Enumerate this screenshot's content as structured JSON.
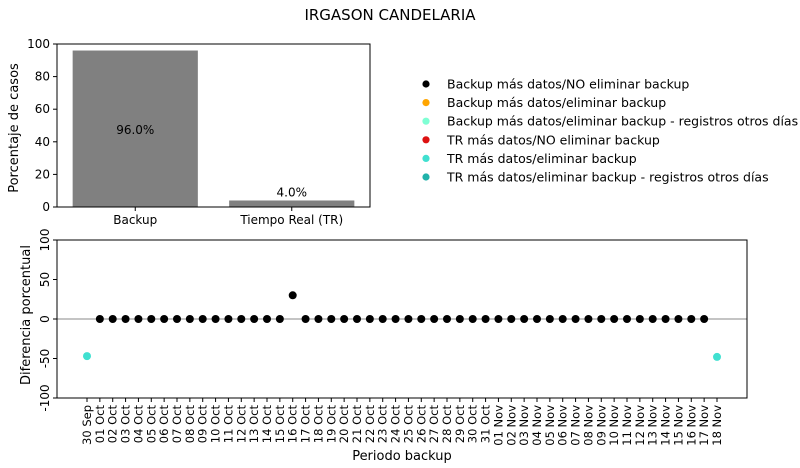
{
  "title": "IRGASON CANDELARIA",
  "legend": [
    {
      "label": "Backup más datos/NO eliminar backup",
      "color": "#000000"
    },
    {
      "label": "Backup más datos/eliminar backup",
      "color": "#ffa500"
    },
    {
      "label": "Backup más datos/eliminar backup - registros otros días",
      "color": "#7fffd4"
    },
    {
      "label": "TR más datos/NO eliminar backup",
      "color": "#dd1111"
    },
    {
      "label": "TR más datos/eliminar backup",
      "color": "#40e0d0"
    },
    {
      "label": "TR más datos/eliminar backup - registros otros días",
      "color": "#20b2aa"
    }
  ],
  "chart_data": [
    {
      "type": "bar",
      "title": "",
      "ylabel": "Porcentaje de casos",
      "xlabel": "",
      "categories": [
        "Backup",
        "Tiempo Real (TR)"
      ],
      "values": [
        96.0,
        4.0
      ],
      "value_labels": [
        "96.0%",
        "4.0%"
      ],
      "ylim": [
        0,
        100
      ],
      "yticks": [
        0,
        20,
        40,
        60,
        80,
        100
      ],
      "bar_color": "#808080"
    },
    {
      "type": "scatter",
      "xlabel": "Periodo backup",
      "ylabel": "Diferencia porcentual",
      "ylim": [
        -100,
        100
      ],
      "yticks": [
        -100,
        -50,
        0,
        50,
        100
      ],
      "reference_line": 0,
      "categories": [
        "30 Sep",
        "01 Oct",
        "02 Oct",
        "03 Oct",
        "04 Oct",
        "05 Oct",
        "06 Oct",
        "07 Oct",
        "08 Oct",
        "09 Oct",
        "10 Oct",
        "11 Oct",
        "12 Oct",
        "13 Oct",
        "14 Oct",
        "15 Oct",
        "16 Oct",
        "17 Oct",
        "18 Oct",
        "19 Oct",
        "20 Oct",
        "21 Oct",
        "22 Oct",
        "23 Oct",
        "24 Oct",
        "25 Oct",
        "26 Oct",
        "27 Oct",
        "28 Oct",
        "29 Oct",
        "30 Oct",
        "31 Oct",
        "01 Nov",
        "02 Nov",
        "03 Nov",
        "04 Nov",
        "05 Nov",
        "06 Nov",
        "07 Nov",
        "08 Nov",
        "09 Nov",
        "10 Nov",
        "11 Nov",
        "12 Nov",
        "13 Nov",
        "14 Nov",
        "15 Nov",
        "16 Nov",
        "17 Nov",
        "18 Nov"
      ],
      "series": [
        {
          "name": "Backup más datos/NO eliminar backup",
          "color": "#000000",
          "points": [
            {
              "x": "01 Oct",
              "y": 0
            },
            {
              "x": "02 Oct",
              "y": 0
            },
            {
              "x": "03 Oct",
              "y": 0
            },
            {
              "x": "04 Oct",
              "y": 0
            },
            {
              "x": "05 Oct",
              "y": 0
            },
            {
              "x": "06 Oct",
              "y": 0
            },
            {
              "x": "07 Oct",
              "y": 0
            },
            {
              "x": "08 Oct",
              "y": 0
            },
            {
              "x": "09 Oct",
              "y": 0
            },
            {
              "x": "10 Oct",
              "y": 0
            },
            {
              "x": "11 Oct",
              "y": 0
            },
            {
              "x": "12 Oct",
              "y": 0
            },
            {
              "x": "13 Oct",
              "y": 0
            },
            {
              "x": "14 Oct",
              "y": 0
            },
            {
              "x": "15 Oct",
              "y": 0
            },
            {
              "x": "16 Oct",
              "y": 30
            },
            {
              "x": "17 Oct",
              "y": 0
            },
            {
              "x": "18 Oct",
              "y": 0
            },
            {
              "x": "19 Oct",
              "y": 0
            },
            {
              "x": "20 Oct",
              "y": 0
            },
            {
              "x": "21 Oct",
              "y": 0
            },
            {
              "x": "22 Oct",
              "y": 0
            },
            {
              "x": "23 Oct",
              "y": 0
            },
            {
              "x": "24 Oct",
              "y": 0
            },
            {
              "x": "25 Oct",
              "y": 0
            },
            {
              "x": "26 Oct",
              "y": 0
            },
            {
              "x": "27 Oct",
              "y": 0
            },
            {
              "x": "28 Oct",
              "y": 0
            },
            {
              "x": "29 Oct",
              "y": 0
            },
            {
              "x": "30 Oct",
              "y": 0
            },
            {
              "x": "31 Oct",
              "y": 0
            },
            {
              "x": "01 Nov",
              "y": 0
            },
            {
              "x": "02 Nov",
              "y": 0
            },
            {
              "x": "03 Nov",
              "y": 0
            },
            {
              "x": "04 Nov",
              "y": 0
            },
            {
              "x": "05 Nov",
              "y": 0
            },
            {
              "x": "06 Nov",
              "y": 0
            },
            {
              "x": "07 Nov",
              "y": 0
            },
            {
              "x": "08 Nov",
              "y": 0
            },
            {
              "x": "09 Nov",
              "y": 0
            },
            {
              "x": "10 Nov",
              "y": 0
            },
            {
              "x": "11 Nov",
              "y": 0
            },
            {
              "x": "12 Nov",
              "y": 0
            },
            {
              "x": "13 Nov",
              "y": 0
            },
            {
              "x": "14 Nov",
              "y": 0
            },
            {
              "x": "15 Nov",
              "y": 0
            },
            {
              "x": "16 Nov",
              "y": 0
            },
            {
              "x": "17 Nov",
              "y": 0
            }
          ]
        },
        {
          "name": "TR más datos/eliminar backup",
          "color": "#40e0d0",
          "points": [
            {
              "x": "30 Sep",
              "y": -47
            },
            {
              "x": "18 Nov",
              "y": -48
            }
          ]
        }
      ]
    }
  ]
}
